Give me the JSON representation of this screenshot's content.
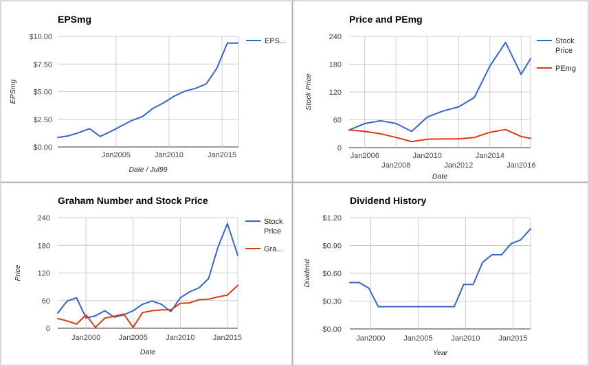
{
  "colors": {
    "blue": "#3366cc",
    "red": "#dc3912",
    "grid": "#cccccc",
    "frame": "#b0b0b0"
  },
  "chart_data": [
    {
      "type": "line",
      "title": "EPSmg",
      "ylabel": "EPSmg",
      "xlabel": "Date / Jul99",
      "ylim": [
        0,
        10
      ],
      "yticks": [
        0,
        2.5,
        5,
        7.5,
        10
      ],
      "ytick_labels": [
        "$0.00",
        "$2.50",
        "$5.00",
        "$7.50",
        "$10.00"
      ],
      "xlim": [
        1999.5,
        2016.55
      ],
      "xticks": [
        2005,
        2010,
        2015
      ],
      "xtick_labels": [
        "Jan2005",
        "Jan2010",
        "Jan2015"
      ],
      "legend_position": "right",
      "x": [
        1999.5,
        2000.5,
        2001.5,
        2002.5,
        2003.5,
        2004.5,
        2005.5,
        2006.5,
        2007.5,
        2008.5,
        2009.5,
        2010.5,
        2011.5,
        2012.5,
        2013.5,
        2014.5,
        2015.5,
        2016.5
      ],
      "series": [
        {
          "name": "EPS...",
          "color": "#3366cc",
          "values": [
            0.85,
            1.0,
            1.3,
            1.65,
            0.95,
            1.4,
            1.9,
            2.4,
            2.75,
            3.5,
            4.0,
            4.6,
            5.05,
            5.3,
            5.7,
            7.1,
            9.4,
            9.4
          ]
        }
      ]
    },
    {
      "type": "line",
      "title": "Price and PEmg",
      "ylabel": "Stock Price",
      "xlabel": "Date",
      "ylim": [
        0,
        240
      ],
      "yticks": [
        0,
        60,
        120,
        180,
        240
      ],
      "ytick_labels": [
        "0",
        "60",
        "120",
        "180",
        "240"
      ],
      "xlim": [
        2005.0,
        2016.6
      ],
      "xticks": [
        2006,
        2008,
        2010,
        2012,
        2014,
        2016
      ],
      "xtick_labels": [
        "Jan2006",
        "Jan2008",
        "Jan2010",
        "Jan2012",
        "Jan2014",
        "Jan2016"
      ],
      "xtick_staggered": true,
      "legend_position": "right",
      "x": [
        2005.0,
        2006.0,
        2007.0,
        2008.0,
        2009.0,
        2010.0,
        2011.0,
        2012.0,
        2013.0,
        2014.0,
        2015.0,
        2016.0,
        2016.6
      ],
      "series": [
        {
          "name": "Stock Price",
          "color": "#3366cc",
          "values": [
            38,
            52,
            58,
            52,
            35,
            66,
            79,
            88,
            108,
            176,
            227,
            158,
            192
          ]
        },
        {
          "name": "PEmg",
          "color": "#dc3912",
          "values": [
            38,
            35,
            30,
            22,
            13,
            18,
            19,
            19,
            22,
            33,
            39,
            24,
            20
          ]
        }
      ]
    },
    {
      "type": "line",
      "title": "Graham Number and Stock Price",
      "ylabel": "Price",
      "xlabel": "Date",
      "ylim": [
        0,
        240
      ],
      "yticks": [
        0,
        60,
        120,
        180,
        240
      ],
      "ytick_labels": [
        "0",
        "60",
        "120",
        "180",
        "240"
      ],
      "xlim": [
        1997.0,
        2016.1
      ],
      "xticks": [
        2000,
        2005,
        2010,
        2015
      ],
      "xtick_labels": [
        "Jan2000",
        "Jan2005",
        "Jan2010",
        "Jan2015"
      ],
      "legend_position": "right",
      "x": [
        1997.0,
        1998.0,
        1999.0,
        2000.0,
        2001.0,
        2002.0,
        2003.0,
        2004.0,
        2005.0,
        2006.0,
        2007.0,
        2008.0,
        2009.0,
        2010.0,
        2011.0,
        2012.0,
        2013.0,
        2014.0,
        2015.0,
        2016.1
      ],
      "series": [
        {
          "name": "Stock Price",
          "color": "#3366cc",
          "values": [
            33,
            59,
            66,
            22,
            27,
            38,
            24,
            29,
            38,
            52,
            59,
            52,
            36,
            66,
            79,
            88,
            108,
            176,
            227,
            158
          ]
        },
        {
          "name": "Gra...",
          "color": "#dc3912",
          "values": [
            21,
            16,
            9,
            29,
            2,
            22,
            26,
            31,
            2,
            34,
            38,
            40,
            40,
            54,
            55,
            62,
            63,
            68,
            72,
            93
          ]
        }
      ]
    },
    {
      "type": "line",
      "title": "Dividend History",
      "ylabel": "Dividend",
      "xlabel": "Year",
      "ylim": [
        0,
        1.2
      ],
      "yticks": [
        0,
        0.3,
        0.6,
        0.9,
        1.2
      ],
      "ytick_labels": [
        "$0.00",
        "$0.30",
        "$0.60",
        "$0.90",
        "$1.20"
      ],
      "xlim": [
        1997.8,
        2016.85
      ],
      "xticks": [
        2000,
        2005,
        2010,
        2015
      ],
      "xtick_labels": [
        "Jan2000",
        "Jan2005",
        "Jan2010",
        "Jan2015"
      ],
      "legend_position": "none",
      "x": [
        1997.8,
        1998.8,
        1999.8,
        2000.8,
        2001.8,
        2002.8,
        2003.8,
        2004.8,
        2005.8,
        2006.8,
        2007.8,
        2008.8,
        2009.8,
        2010.8,
        2011.8,
        2012.8,
        2013.8,
        2014.8,
        2015.8,
        2016.85
      ],
      "series": [
        {
          "color": "#3366cc",
          "values": [
            0.5,
            0.5,
            0.44,
            0.24,
            0.24,
            0.24,
            0.24,
            0.24,
            0.24,
            0.24,
            0.24,
            0.24,
            0.48,
            0.48,
            0.72,
            0.8,
            0.8,
            0.92,
            0.96,
            1.08
          ]
        }
      ]
    }
  ]
}
